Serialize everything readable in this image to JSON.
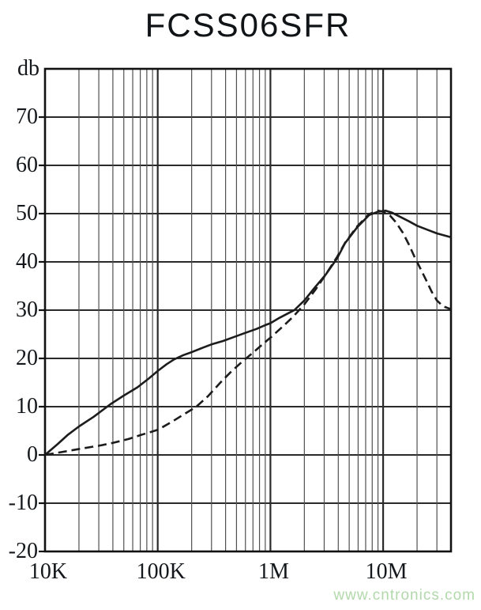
{
  "page": {
    "background": "#ffffff"
  },
  "watermark": {
    "text": "www.cntronics.com"
  },
  "colors": {
    "curve": "#1c1c1c",
    "grid_major": "#2a2a2a",
    "grid_minor": "#505050",
    "frame": "#111111",
    "title_text": "#101417",
    "axis_text": "#14181c",
    "watermark": "#b2d8ac",
    "background": "#ffffff"
  },
  "chart_data": {
    "type": "line",
    "title": "FCSS06SFR",
    "x_axis": {
      "scale": "log",
      "min": 10000,
      "max": 40000000,
      "ticks": [
        {
          "label": "10K",
          "value": 10000
        },
        {
          "label": "100K",
          "value": 100000
        },
        {
          "label": "1M",
          "value": 1000000
        },
        {
          "label": "10M",
          "value": 10000000
        }
      ]
    },
    "y_axis": {
      "unit_label": "db",
      "min": -20,
      "max": 80,
      "step": 10,
      "ticks": [
        {
          "label": "70",
          "value": 70
        },
        {
          "label": "60",
          "value": 60
        },
        {
          "label": "50",
          "value": 50
        },
        {
          "label": "40",
          "value": 40
        },
        {
          "label": "30",
          "value": 30
        },
        {
          "label": "20",
          "value": 20
        },
        {
          "label": "10",
          "value": 10
        },
        {
          "label": "0",
          "value": 0
        },
        {
          "label": "-10",
          "value": -10
        },
        {
          "label": "-20",
          "value": -20
        }
      ]
    },
    "grid": {
      "horizontal_step_db": 10,
      "vertical": "log decades with minor lines 2-9"
    },
    "series": [
      {
        "name": "solid-curve",
        "style": "solid",
        "points": [
          [
            10000,
            0
          ],
          [
            13000,
            2.3
          ],
          [
            16000,
            4.2
          ],
          [
            20000,
            5.9
          ],
          [
            27000,
            7.9
          ],
          [
            38000,
            10.5
          ],
          [
            50000,
            12.3
          ],
          [
            66000,
            14.0
          ],
          [
            83000,
            15.8
          ],
          [
            100000,
            17.4
          ],
          [
            120000,
            18.8
          ],
          [
            140000,
            19.8
          ],
          [
            170000,
            20.7
          ],
          [
            200000,
            21.3
          ],
          [
            250000,
            22.2
          ],
          [
            300000,
            22.9
          ],
          [
            380000,
            23.6
          ],
          [
            470000,
            24.4
          ],
          [
            600000,
            25.3
          ],
          [
            750000,
            26.1
          ],
          [
            900000,
            26.9
          ],
          [
            1000000,
            27.3
          ],
          [
            1200000,
            28.4
          ],
          [
            1450000,
            29.4
          ],
          [
            1630000,
            30.0
          ],
          [
            2000000,
            32.0
          ],
          [
            2440000,
            34.5
          ],
          [
            3100000,
            37.4
          ],
          [
            3900000,
            40.7
          ],
          [
            4600000,
            43.9
          ],
          [
            5900000,
            47.2
          ],
          [
            7500000,
            49.7
          ],
          [
            9000000,
            50.4
          ],
          [
            10500000,
            50.6
          ],
          [
            12000000,
            50.2
          ],
          [
            14000000,
            49.4
          ],
          [
            17000000,
            48.4
          ],
          [
            20000000,
            47.5
          ],
          [
            25000000,
            46.6
          ],
          [
            30000000,
            45.9
          ],
          [
            40000000,
            45.1
          ]
        ]
      },
      {
        "name": "dashed-curve",
        "style": "dashed",
        "points": [
          [
            10000,
            0
          ],
          [
            15000,
            0.7
          ],
          [
            22000,
            1.4
          ],
          [
            30000,
            1.9
          ],
          [
            40000,
            2.5
          ],
          [
            55000,
            3.3
          ],
          [
            70000,
            4.1
          ],
          [
            100000,
            5.2
          ],
          [
            130000,
            6.7
          ],
          [
            160000,
            8.0
          ],
          [
            220000,
            10.0
          ],
          [
            280000,
            12.2
          ],
          [
            360000,
            15.0
          ],
          [
            450000,
            17.3
          ],
          [
            560000,
            19.3
          ],
          [
            700000,
            21.2
          ],
          [
            850000,
            22.9
          ],
          [
            1000000,
            24.3
          ],
          [
            1300000,
            26.7
          ],
          [
            1600000,
            28.7
          ],
          [
            2000000,
            31.2
          ],
          [
            2500000,
            34.2
          ],
          [
            3100000,
            37.4
          ],
          [
            3900000,
            41.0
          ],
          [
            4600000,
            44.0
          ],
          [
            5900000,
            47.4
          ],
          [
            7500000,
            49.9
          ],
          [
            9000000,
            50.6
          ],
          [
            10000000,
            50.4
          ],
          [
            11500000,
            49.6
          ],
          [
            13000000,
            48.2
          ],
          [
            15000000,
            46.0
          ],
          [
            17000000,
            43.5
          ],
          [
            19000000,
            41.0
          ],
          [
            21000000,
            39.0
          ],
          [
            24000000,
            36.3
          ],
          [
            27000000,
            33.8
          ],
          [
            30000000,
            32.0
          ],
          [
            34000000,
            30.8
          ],
          [
            40000000,
            30.2
          ]
        ]
      }
    ]
  }
}
